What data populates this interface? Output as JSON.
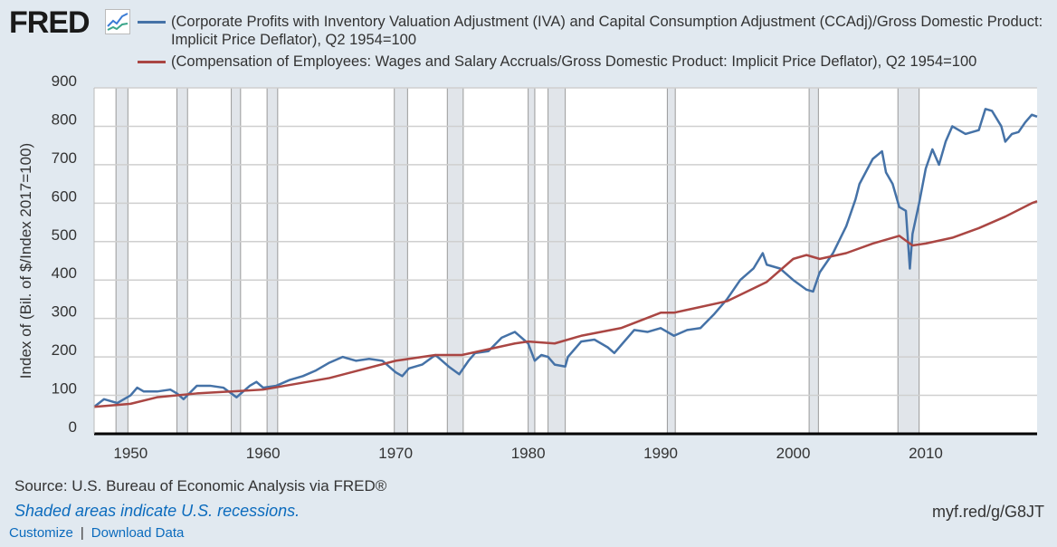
{
  "header": {
    "logo": "FRED"
  },
  "links": {
    "customize": "Customize",
    "separator": "|",
    "download": "Download Data"
  },
  "footer": {
    "source": "Source: U.S. Bureau of Economic Analysis via FRED®",
    "recession_note": "Shaded areas indicate U.S. recessions.",
    "short_url": "myf.red/g/G8JT"
  },
  "chart_data": {
    "type": "line",
    "ylabel": "Index of (Bil. of $/Index 2017=100)",
    "xlim": [
      1947.25,
      2018.4
    ],
    "ylim": [
      0,
      900
    ],
    "yticks": [
      "0",
      "100",
      "200",
      "300",
      "400",
      "500",
      "600",
      "700",
      "800",
      "900"
    ],
    "xticks": [
      "1950",
      "1960",
      "1970",
      "1980",
      "1990",
      "2000",
      "2010"
    ],
    "grid": true,
    "legend_placement": "top",
    "recessions": [
      [
        1948.9,
        1949.8
      ],
      [
        1953.5,
        1954.3
      ],
      [
        1957.6,
        1958.3
      ],
      [
        1960.3,
        1961.1
      ],
      [
        1969.9,
        1970.9
      ],
      [
        1973.9,
        1975.1
      ],
      [
        1980.0,
        1980.5
      ],
      [
        1981.5,
        1982.8
      ],
      [
        1990.5,
        1991.1
      ],
      [
        2001.2,
        2001.9
      ],
      [
        2007.9,
        2009.5
      ]
    ],
    "series": [
      {
        "name": "(Corporate Profits with Inventory Valuation Adjustment (IVA) and Capital Consumption Adjustment (CCAdj)/Gross Domestic Product: Implicit Price Deflator), Q2 1954=100",
        "color": "#4572a7",
        "x": [
          1947.25,
          1948,
          1949,
          1950,
          1950.5,
          1951,
          1952,
          1953,
          1953.5,
          1954,
          1955,
          1956,
          1957,
          1958,
          1959,
          1959.5,
          1960,
          1961,
          1962,
          1963,
          1964,
          1965,
          1966,
          1967,
          1968,
          1969,
          1970,
          1970.5,
          1971,
          1972,
          1973,
          1974,
          1974.8,
          1975.5,
          1976,
          1977,
          1978,
          1979,
          1980,
          1980.5,
          1981,
          1981.5,
          1982,
          1982.8,
          1983,
          1984,
          1985,
          1986,
          1986.5,
          1987,
          1988,
          1989,
          1990,
          1991,
          1992,
          1993,
          1994,
          1995,
          1996,
          1997,
          1997.7,
          1998,
          1999,
          2000,
          2001,
          2001.5,
          2002,
          2003,
          2004,
          2004.7,
          2005,
          2006,
          2006.7,
          2007,
          2007.5,
          2008,
          2008.5,
          2008.8,
          2009,
          2009.5,
          2010,
          2010.5,
          2011,
          2011.5,
          2012,
          2013,
          2014,
          2014.5,
          2015,
          2015.7,
          2016,
          2016.5,
          2017,
          2017.5,
          2018,
          2018.4
        ],
        "values": [
          70,
          90,
          80,
          100,
          120,
          110,
          110,
          115,
          105,
          90,
          125,
          125,
          120,
          95,
          125,
          135,
          120,
          125,
          140,
          150,
          165,
          185,
          200,
          190,
          195,
          190,
          160,
          150,
          170,
          180,
          205,
          175,
          155,
          190,
          210,
          215,
          250,
          265,
          235,
          190,
          205,
          200,
          180,
          175,
          200,
          240,
          245,
          225,
          210,
          230,
          270,
          265,
          275,
          255,
          270,
          275,
          310,
          350,
          400,
          430,
          470,
          440,
          430,
          400,
          375,
          370,
          420,
          470,
          540,
          610,
          650,
          715,
          735,
          680,
          650,
          590,
          580,
          430,
          520,
          600,
          690,
          740,
          700,
          760,
          800,
          780,
          790,
          845,
          840,
          800,
          760,
          780,
          785,
          810,
          830,
          825
        ]
      },
      {
        "name": "(Compensation of Employees: Wages and Salary Accruals/Gross Domestic Product: Implicit Price Deflator), Q2 1954=100",
        "color": "#aa4643",
        "x": [
          1947.25,
          1949,
          1950,
          1952,
          1955,
          1960,
          1965,
          1970,
          1973,
          1975,
          1979,
          1980,
          1982,
          1984,
          1987,
          1990,
          1991,
          1995,
          1998,
          2000,
          2001,
          2002,
          2004,
          2006,
          2008,
          2009,
          2010,
          2012,
          2014,
          2016,
          2018,
          2018.4
        ],
        "values": [
          70,
          75,
          78,
          95,
          105,
          115,
          145,
          190,
          205,
          205,
          235,
          240,
          235,
          255,
          275,
          315,
          315,
          345,
          395,
          455,
          465,
          455,
          470,
          495,
          515,
          490,
          495,
          510,
          535,
          565,
          600,
          605
        ]
      }
    ]
  }
}
